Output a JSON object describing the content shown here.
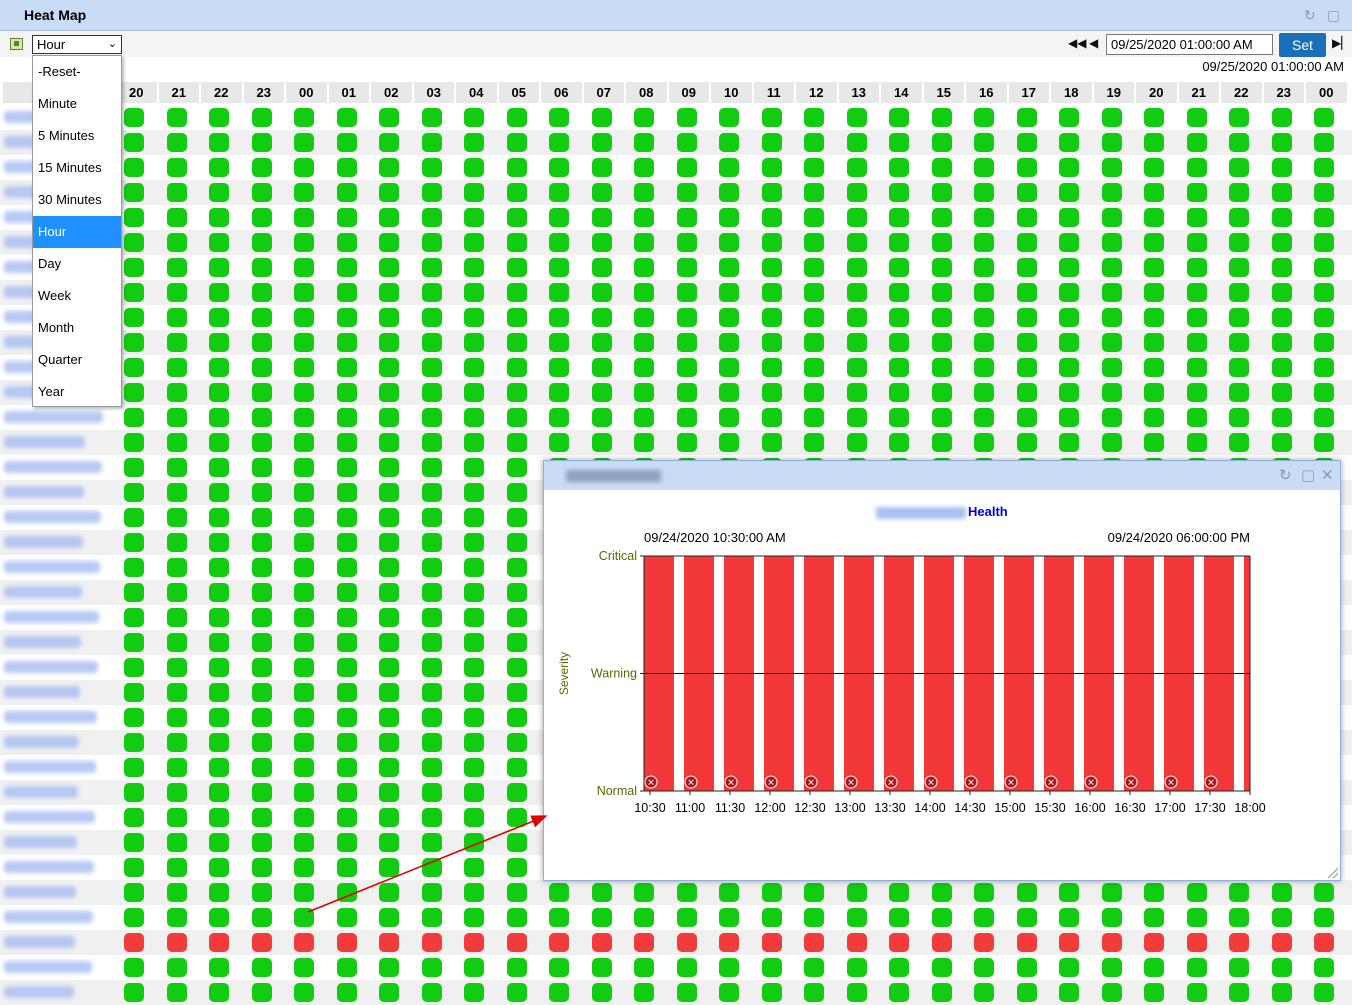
{
  "window": {
    "title": "Heat Map"
  },
  "toolbar": {
    "interval_selected": "Hour",
    "datetime_value": "09/25/2020 01:00:00 AM",
    "set_label": "Set",
    "current_time": "09/25/2020 01:00:00 AM"
  },
  "dropdown": {
    "options": [
      "-Reset-",
      "Minute",
      "5 Minutes",
      "15 Minutes",
      "30 Minutes",
      "Hour",
      "Day",
      "Week",
      "Month",
      "Quarter",
      "Year"
    ],
    "selected": "Hour"
  },
  "grid": {
    "hours": [
      "20",
      "21",
      "22",
      "23",
      "00",
      "01",
      "02",
      "03",
      "04",
      "05",
      "06",
      "07",
      "08",
      "09",
      "10",
      "11",
      "12",
      "13",
      "14",
      "15",
      "16",
      "17",
      "18",
      "19",
      "20",
      "21",
      "22",
      "23",
      "00"
    ],
    "row_status": [
      "ok",
      "ok",
      "ok",
      "ok",
      "ok",
      "ok",
      "ok",
      "ok",
      "ok",
      "ok",
      "ok",
      "ok",
      "ok",
      "ok",
      "ok",
      "ok",
      "ok",
      "ok",
      "ok",
      "ok",
      "ok",
      "ok",
      "ok",
      "ok",
      "ok",
      "ok",
      "ok",
      "ok",
      "ok",
      "ok",
      "ok",
      "ok",
      "ok",
      "crit",
      "ok",
      "ok"
    ]
  },
  "colors": {
    "ok": "#11cc11",
    "critical": "#f23c3c",
    "accent": "#1a6fb8"
  },
  "popup": {
    "chart_title": "Health",
    "start_label": "09/24/2020 10:30:00 AM",
    "end_label": "09/24/2020 06:00:00 PM"
  },
  "chart_data": {
    "type": "bar",
    "title": "Health",
    "ylabel": "Severity",
    "xlabel": "",
    "y_levels": [
      "Normal",
      "Warning",
      "Critical"
    ],
    "categories": [
      "10:30",
      "11:00",
      "11:30",
      "12:00",
      "12:30",
      "13:00",
      "13:30",
      "14:00",
      "14:30",
      "15:00",
      "15:30",
      "16:00",
      "16:30",
      "17:00",
      "17:30",
      "18:00"
    ],
    "values": [
      "Critical",
      "Critical",
      "Critical",
      "Critical",
      "Critical",
      "Critical",
      "Critical",
      "Critical",
      "Critical",
      "Critical",
      "Critical",
      "Critical",
      "Critical",
      "Critical",
      "Critical",
      "Critical"
    ],
    "bar_color": "#f23838",
    "grid": true
  }
}
